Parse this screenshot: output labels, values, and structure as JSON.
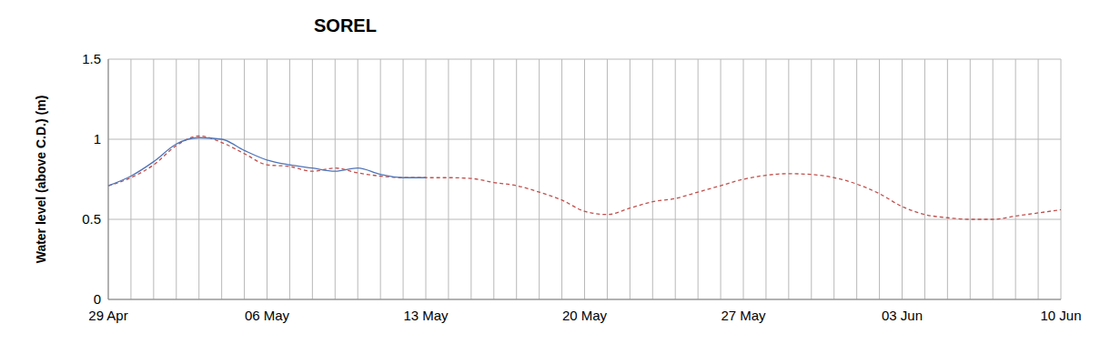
{
  "chart_data": {
    "type": "line",
    "title": "SOREL",
    "ylabel": "Water level (above C.D.) (m)",
    "categories": [
      "29 Apr",
      null,
      null,
      null,
      null,
      null,
      null,
      "06 May",
      null,
      null,
      null,
      null,
      null,
      null,
      "13 May",
      null,
      null,
      null,
      null,
      null,
      null,
      "20 May",
      null,
      null,
      null,
      null,
      null,
      null,
      "27 May",
      null,
      null,
      null,
      null,
      null,
      null,
      "03 Jun",
      null,
      null,
      null,
      null,
      null,
      null,
      "10 Jun"
    ],
    "series": [
      {
        "color": "#c0504d",
        "line_style": "dashed",
        "values": [
          0.71,
          0.76,
          0.84,
          0.96,
          1.02,
          0.98,
          0.91,
          0.84,
          0.83,
          0.8,
          0.82,
          0.79,
          0.77,
          0.76,
          0.76,
          0.76,
          0.755,
          0.73,
          0.71,
          0.67,
          0.62,
          0.55,
          0.53,
          0.57,
          0.61,
          0.63,
          0.67,
          0.71,
          0.75,
          0.775,
          0.785,
          0.78,
          0.76,
          0.72,
          0.66,
          0.58,
          0.53,
          0.51,
          0.5,
          0.5,
          0.52,
          0.54,
          0.56
        ]
      },
      {
        "color": "#4f74b8",
        "line_style": "solid",
        "values": [
          0.71,
          0.77,
          0.86,
          0.97,
          1.01,
          1.0,
          0.93,
          0.87,
          0.84,
          0.82,
          0.8,
          0.82,
          0.78,
          0.76,
          0.76,
          null,
          null,
          null,
          null,
          null,
          null,
          null,
          null,
          null,
          null,
          null,
          null,
          null,
          null,
          null,
          null,
          null,
          null,
          null,
          null,
          null,
          null,
          null,
          null,
          null,
          null,
          null,
          null
        ]
      }
    ],
    "ylim": [
      0,
      1.5
    ],
    "yticks": [
      0,
      0.5,
      1,
      1.5
    ],
    "grid": true
  }
}
